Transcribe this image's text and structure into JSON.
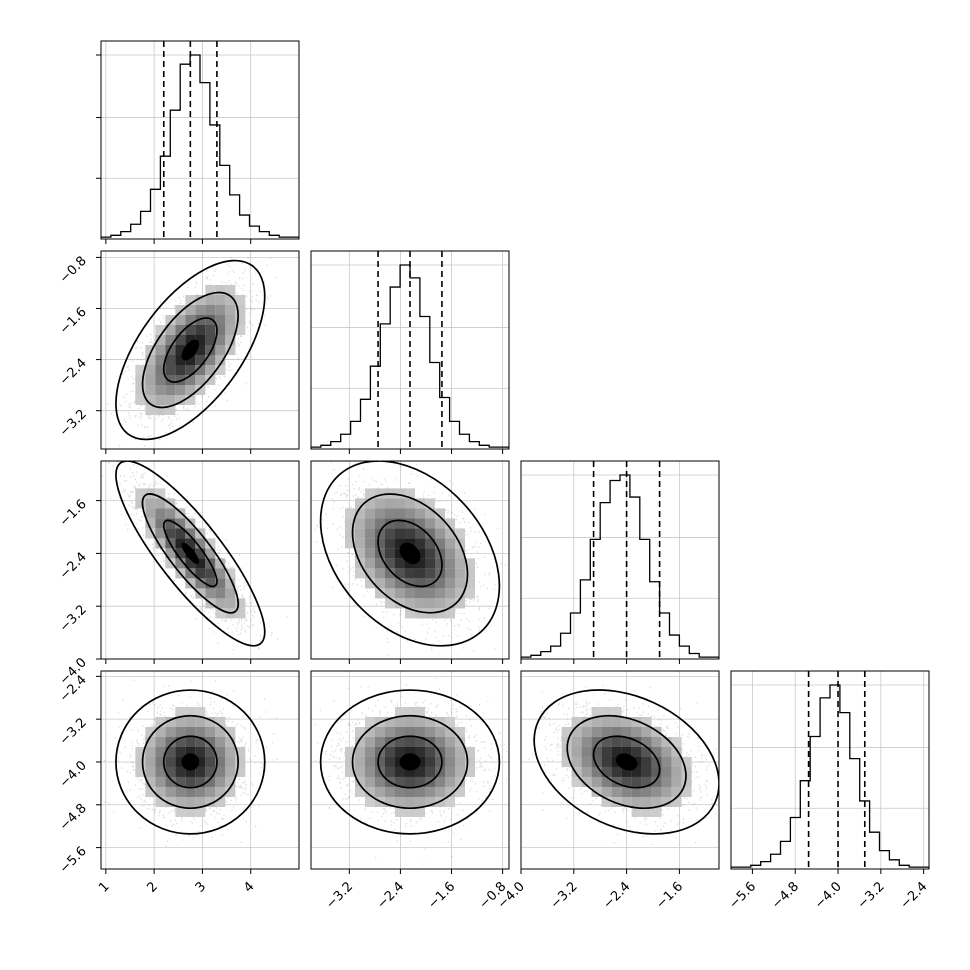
{
  "chart_data": {
    "type": "corner",
    "parameters": [
      {
        "index": 0,
        "range": [
          0.9,
          5.0
        ],
        "ticks": [
          {
            "value": 1,
            "label": "1"
          },
          {
            "value": 2,
            "label": "2"
          },
          {
            "value": 3,
            "label": "3"
          },
          {
            "value": 4,
            "label": "4"
          }
        ]
      },
      {
        "index": 1,
        "range": [
          -3.8,
          -0.7
        ],
        "ticks": [
          {
            "value": -3.2,
            "label": "−3.2"
          },
          {
            "value": -2.4,
            "label": "−2.4"
          },
          {
            "value": -1.6,
            "label": "−1.6"
          },
          {
            "value": -0.8,
            "label": "−0.8"
          }
        ]
      },
      {
        "index": 2,
        "range": [
          -4.0,
          -1.0
        ],
        "ticks": [
          {
            "value": -4.0,
            "label": "−4.0"
          },
          {
            "value": -3.2,
            "label": "−3.2"
          },
          {
            "value": -2.4,
            "label": "−2.4"
          },
          {
            "value": -1.6,
            "label": "−1.6"
          }
        ]
      },
      {
        "index": 3,
        "range": [
          -6.0,
          -2.3
        ],
        "ticks": [
          {
            "value": -5.6,
            "label": "−5.6"
          },
          {
            "value": -4.8,
            "label": "−4.8"
          },
          {
            "value": -4.0,
            "label": "−4.0"
          },
          {
            "value": -3.2,
            "label": "−3.2"
          },
          {
            "value": -2.4,
            "label": "−2.4"
          }
        ]
      }
    ],
    "quantiles": [
      {
        "param": 0,
        "values": [
          2.2,
          2.75,
          3.3
        ]
      },
      {
        "param": 1,
        "values": [
          -2.75,
          -2.25,
          -1.75
        ]
      },
      {
        "param": 2,
        "values": [
          -2.9,
          -2.4,
          -1.9
        ]
      },
      {
        "param": 3,
        "values": [
          -4.55,
          -4.0,
          -3.5
        ]
      }
    ],
    "histograms": [
      {
        "param": 0,
        "counts": [
          1,
          2,
          4,
          8,
          15,
          27,
          45,
          70,
          95,
          100,
          85,
          62,
          40,
          24,
          13,
          7,
          4,
          2,
          1,
          1
        ]
      },
      {
        "param": 1,
        "counts": [
          1,
          2,
          4,
          8,
          15,
          27,
          45,
          68,
          88,
          100,
          93,
          72,
          47,
          28,
          15,
          8,
          4,
          2,
          1,
          1
        ]
      },
      {
        "param": 2,
        "counts": [
          1,
          2,
          4,
          7,
          14,
          25,
          43,
          65,
          85,
          97,
          100,
          88,
          65,
          42,
          25,
          13,
          7,
          3,
          1,
          1
        ]
      },
      {
        "param": 3,
        "counts": [
          1,
          1,
          2,
          4,
          8,
          15,
          28,
          48,
          72,
          93,
          100,
          85,
          60,
          37,
          20,
          10,
          5,
          2,
          1,
          1
        ]
      }
    ],
    "pairs": [
      {
        "row": 1,
        "col": 0,
        "mean": [
          2.75,
          -2.25
        ],
        "sd": [
          0.55,
          0.5
        ],
        "rho": 0.6
      },
      {
        "row": 2,
        "col": 0,
        "mean": [
          2.75,
          -2.4
        ],
        "sd": [
          0.55,
          0.5
        ],
        "rho": -0.85
      },
      {
        "row": 2,
        "col": 1,
        "mean": [
          -2.25,
          -2.4
        ],
        "sd": [
          0.5,
          0.5
        ],
        "rho": -0.35
      },
      {
        "row": 3,
        "col": 0,
        "mean": [
          2.75,
          -4.0
        ],
        "sd": [
          0.55,
          0.48
        ],
        "rho": 0.0
      },
      {
        "row": 3,
        "col": 1,
        "mean": [
          -2.25,
          -4.0
        ],
        "sd": [
          0.5,
          0.48
        ],
        "rho": 0.0
      },
      {
        "row": 3,
        "col": 2,
        "mean": [
          -2.4,
          -4.0
        ],
        "sd": [
          0.5,
          0.48
        ],
        "rho": -0.3
      }
    ],
    "title": "",
    "grid": true,
    "legend": "none"
  }
}
